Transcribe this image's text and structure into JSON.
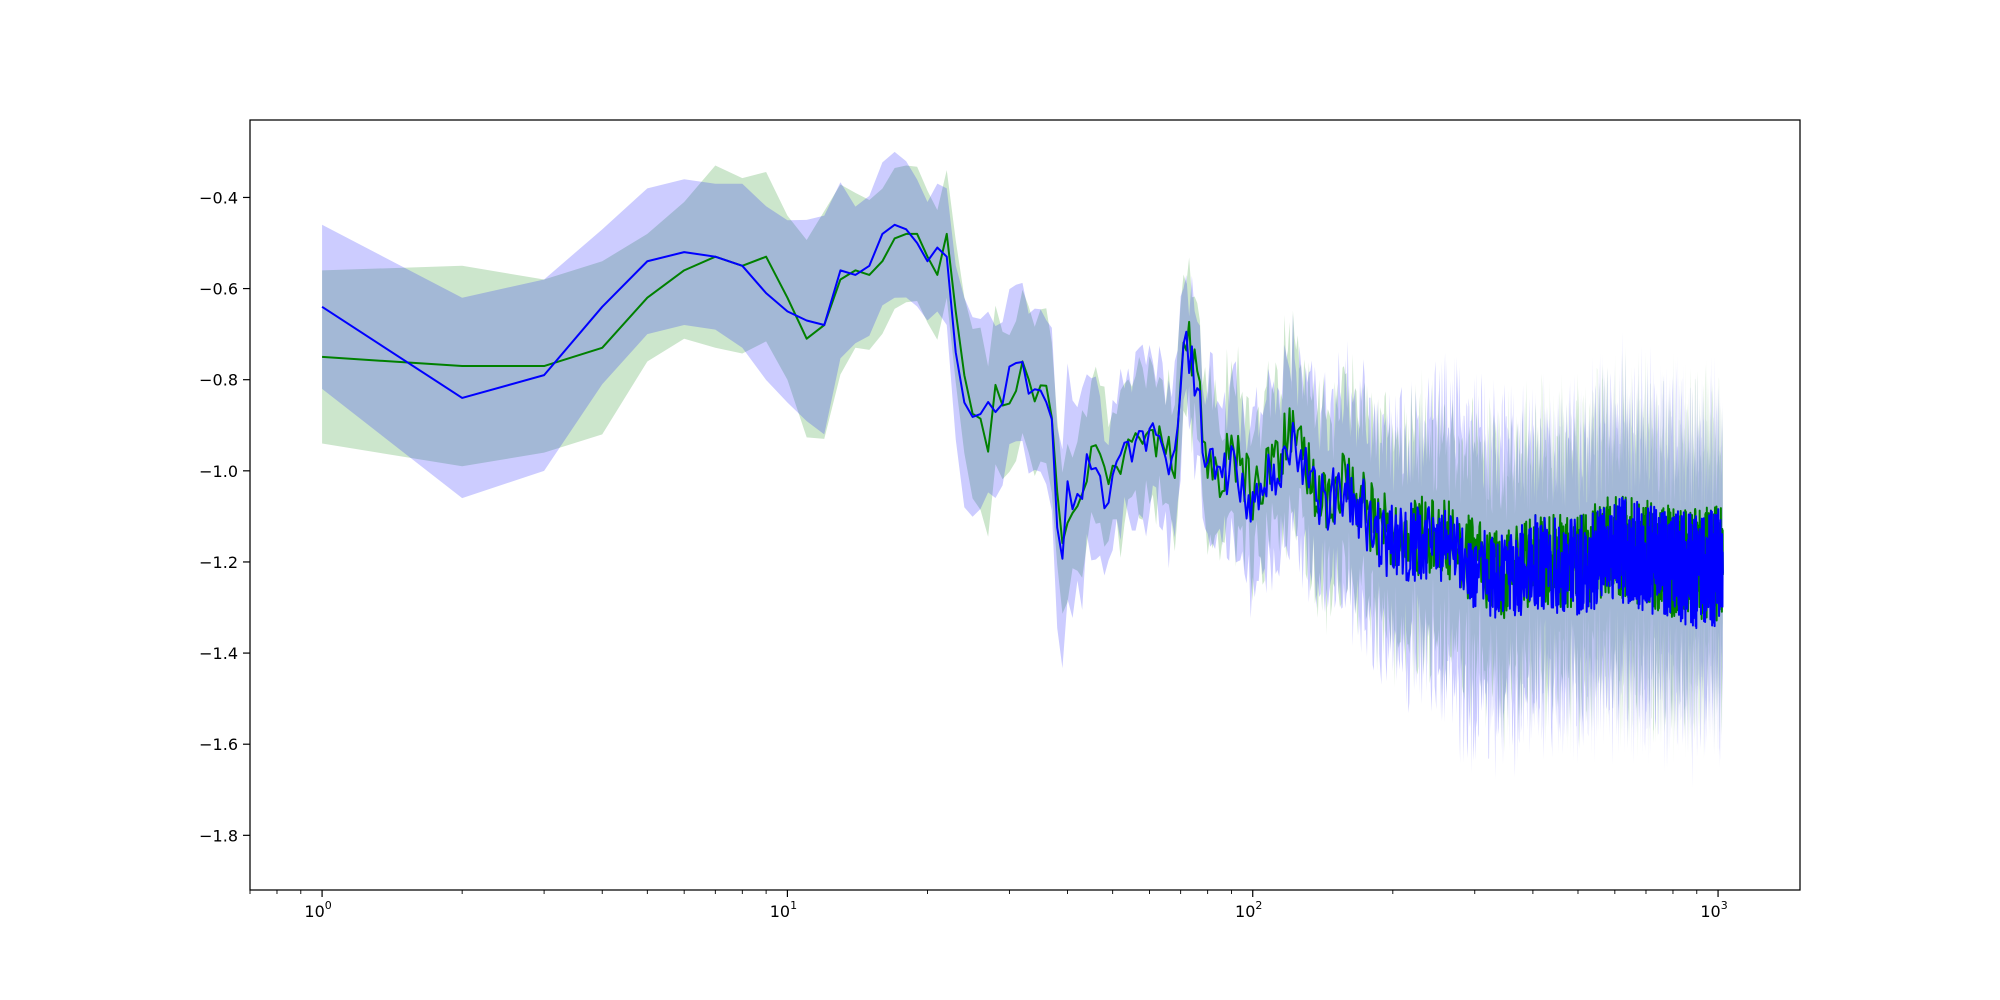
{
  "chart_data": {
    "type": "line",
    "title": "",
    "xlabel": "",
    "ylabel": "",
    "xscale": "log",
    "xlim": [
      0.7,
      1500
    ],
    "ylim": [
      -1.92,
      -0.23
    ],
    "grid": false,
    "legend": "none",
    "x_ticks": [
      {
        "value": 1,
        "base": "10",
        "exp": "0"
      },
      {
        "value": 10,
        "base": "10",
        "exp": "1"
      },
      {
        "value": 100,
        "base": "10",
        "exp": "2"
      },
      {
        "value": 1000,
        "base": "10",
        "exp": "3"
      }
    ],
    "y_ticks": [
      {
        "value": -0.4,
        "label": "−0.4"
      },
      {
        "value": -0.6,
        "label": "−0.6"
      },
      {
        "value": -0.8,
        "label": "−0.8"
      },
      {
        "value": -1.0,
        "label": "−1.0"
      },
      {
        "value": -1.2,
        "label": "−1.2"
      },
      {
        "value": -1.4,
        "label": "−1.4"
      },
      {
        "value": -1.6,
        "label": "−1.6"
      },
      {
        "value": -1.8,
        "label": "−1.8"
      }
    ],
    "series": [
      {
        "color": "#008000",
        "band_color": "#008000",
        "x_max": 1024,
        "points": [
          [
            1,
            -0.75
          ],
          [
            2,
            -0.77
          ],
          [
            3,
            -0.77
          ],
          [
            4,
            -0.73
          ],
          [
            5,
            -0.62
          ],
          [
            6,
            -0.56
          ],
          [
            7,
            -0.53
          ],
          [
            8,
            -0.55
          ],
          [
            9,
            -0.53
          ],
          [
            10,
            -0.62
          ],
          [
            11,
            -0.71
          ],
          [
            12,
            -0.68
          ],
          [
            13,
            -0.58
          ],
          [
            14,
            -0.56
          ],
          [
            15,
            -0.57
          ],
          [
            16,
            -0.54
          ],
          [
            17,
            -0.49
          ],
          [
            18,
            -0.48
          ],
          [
            19,
            -0.48
          ],
          [
            20,
            -0.53
          ],
          [
            21,
            -0.57
          ],
          [
            22,
            -0.48
          ],
          [
            23,
            -0.65
          ],
          [
            24,
            -0.79
          ],
          [
            25,
            -0.85
          ],
          [
            26,
            -0.9
          ],
          [
            27,
            -0.94
          ],
          [
            28,
            -0.82
          ],
          [
            30,
            -0.86
          ],
          [
            32,
            -0.77
          ],
          [
            34,
            -0.86
          ],
          [
            36,
            -0.8
          ],
          [
            37,
            -0.86
          ],
          [
            38,
            -1.02
          ],
          [
            39,
            -1.14
          ],
          [
            40,
            -1.08
          ],
          [
            42,
            -1.06
          ],
          [
            45,
            -0.95
          ],
          [
            48,
            -1.0
          ],
          [
            52,
            -0.97
          ],
          [
            56,
            -0.93
          ],
          [
            60,
            -0.96
          ],
          [
            64,
            -0.9
          ],
          [
            68,
            -0.98
          ],
          [
            70,
            -0.76
          ],
          [
            72,
            -0.69
          ],
          [
            75,
            -0.78
          ],
          [
            80,
            -0.97
          ],
          [
            85,
            -1.02
          ],
          [
            90,
            -0.94
          ],
          [
            100,
            -1.05
          ],
          [
            110,
            -0.98
          ],
          [
            120,
            -0.92
          ],
          [
            140,
            -1.06
          ],
          [
            160,
            -1.02
          ],
          [
            180,
            -1.1
          ],
          [
            200,
            -1.15
          ],
          [
            250,
            -1.14
          ],
          [
            300,
            -1.2
          ],
          [
            350,
            -1.23
          ],
          [
            400,
            -1.19
          ],
          [
            500,
            -1.2
          ],
          [
            600,
            -1.16
          ],
          [
            700,
            -1.18
          ],
          [
            800,
            -1.2
          ],
          [
            900,
            -1.21
          ],
          [
            1024,
            -1.2
          ]
        ],
        "band_width": [
          [
            1,
            0.19
          ],
          [
            2,
            0.22
          ],
          [
            3,
            0.19
          ],
          [
            4,
            0.19
          ],
          [
            5,
            0.14
          ],
          [
            6,
            0.15
          ],
          [
            7,
            0.2
          ],
          [
            10,
            0.18
          ],
          [
            12,
            0.25
          ],
          [
            14,
            0.17
          ],
          [
            18,
            0.15
          ],
          [
            22,
            0.14
          ],
          [
            26,
            0.2
          ],
          [
            30,
            0.15
          ],
          [
            36,
            0.17
          ],
          [
            40,
            0.15
          ],
          [
            60,
            0.13
          ],
          [
            100,
            0.15
          ],
          [
            200,
            0.2
          ],
          [
            400,
            0.24
          ],
          [
            700,
            0.26
          ],
          [
            1024,
            0.25
          ]
        ]
      },
      {
        "color": "#0000ff",
        "band_color": "#0000ff",
        "x_max": 1024,
        "points": [
          [
            1,
            -0.64
          ],
          [
            2,
            -0.84
          ],
          [
            3,
            -0.79
          ],
          [
            4,
            -0.64
          ],
          [
            5,
            -0.54
          ],
          [
            6,
            -0.52
          ],
          [
            7,
            -0.53
          ],
          [
            8,
            -0.55
          ],
          [
            9,
            -0.61
          ],
          [
            10,
            -0.65
          ],
          [
            11,
            -0.67
          ],
          [
            12,
            -0.68
          ],
          [
            13,
            -0.56
          ],
          [
            14,
            -0.57
          ],
          [
            15,
            -0.55
          ],
          [
            16,
            -0.48
          ],
          [
            17,
            -0.46
          ],
          [
            18,
            -0.47
          ],
          [
            19,
            -0.5
          ],
          [
            20,
            -0.54
          ],
          [
            21,
            -0.51
          ],
          [
            22,
            -0.53
          ],
          [
            23,
            -0.74
          ],
          [
            24,
            -0.85
          ],
          [
            25,
            -0.9
          ],
          [
            26,
            -0.87
          ],
          [
            27,
            -0.86
          ],
          [
            28,
            -0.85
          ],
          [
            30,
            -0.8
          ],
          [
            32,
            -0.75
          ],
          [
            34,
            -0.85
          ],
          [
            36,
            -0.85
          ],
          [
            37,
            -0.9
          ],
          [
            38,
            -1.1
          ],
          [
            39,
            -1.23
          ],
          [
            40,
            -1.05
          ],
          [
            42,
            -1.05
          ],
          [
            45,
            -0.98
          ],
          [
            48,
            -1.05
          ],
          [
            52,
            -0.99
          ],
          [
            56,
            -0.95
          ],
          [
            60,
            -0.92
          ],
          [
            64,
            -0.95
          ],
          [
            68,
            -0.98
          ],
          [
            70,
            -0.8
          ],
          [
            72,
            -0.71
          ],
          [
            75,
            -0.8
          ],
          [
            80,
            -0.98
          ],
          [
            85,
            -1.04
          ],
          [
            90,
            -0.96
          ],
          [
            100,
            -1.08
          ],
          [
            110,
            -1.0
          ],
          [
            120,
            -0.94
          ],
          [
            140,
            -1.08
          ],
          [
            160,
            -1.04
          ],
          [
            180,
            -1.12
          ],
          [
            200,
            -1.16
          ],
          [
            250,
            -1.15
          ],
          [
            300,
            -1.21
          ],
          [
            350,
            -1.24
          ],
          [
            400,
            -1.2
          ],
          [
            500,
            -1.21
          ],
          [
            600,
            -1.17
          ],
          [
            700,
            -1.19
          ],
          [
            800,
            -1.21
          ],
          [
            900,
            -1.22
          ],
          [
            1024,
            -1.21
          ]
        ],
        "band_width": [
          [
            1,
            0.18
          ],
          [
            2,
            0.22
          ],
          [
            3,
            0.21
          ],
          [
            4,
            0.17
          ],
          [
            5,
            0.16
          ],
          [
            6,
            0.16
          ],
          [
            7,
            0.16
          ],
          [
            8,
            0.18
          ],
          [
            10,
            0.2
          ],
          [
            12,
            0.24
          ],
          [
            14,
            0.15
          ],
          [
            17,
            0.16
          ],
          [
            20,
            0.13
          ],
          [
            22,
            0.15
          ],
          [
            24,
            0.23
          ],
          [
            30,
            0.17
          ],
          [
            36,
            0.18
          ],
          [
            39,
            0.24
          ],
          [
            45,
            0.16
          ],
          [
            60,
            0.15
          ],
          [
            100,
            0.17
          ],
          [
            200,
            0.22
          ],
          [
            270,
            0.3
          ],
          [
            400,
            0.26
          ],
          [
            700,
            0.28
          ],
          [
            1024,
            0.26
          ]
        ]
      }
    ]
  }
}
